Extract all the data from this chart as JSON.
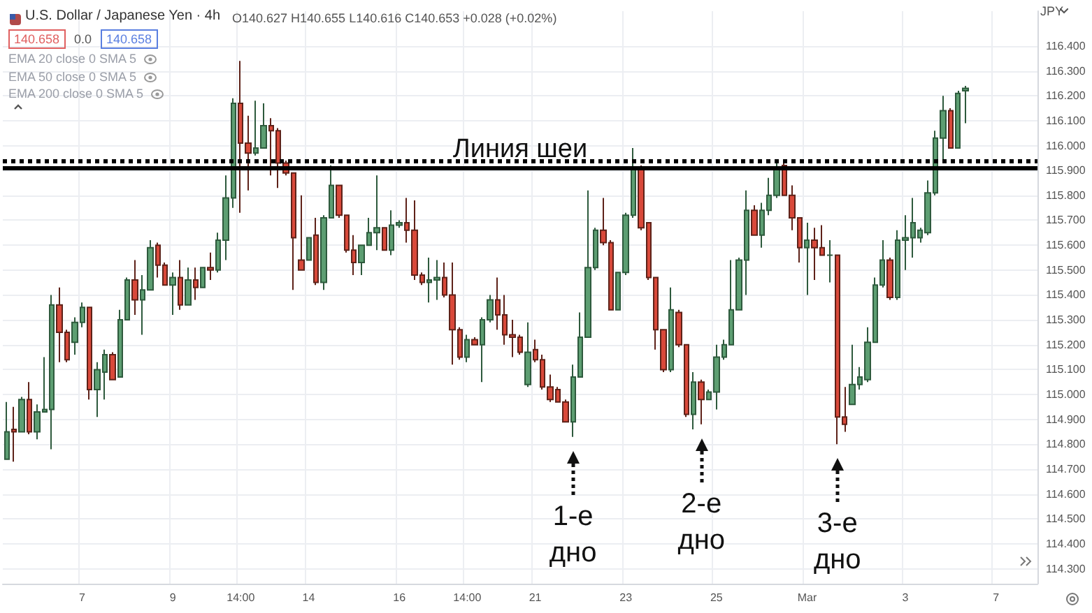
{
  "chart_data": {
    "type": "candlestick",
    "title": "U.S. Dollar / Japanese Yen · 4h",
    "subtitle": "O140.627 H140.655 L140.616 C140.653 +0.028 (+0.02%)",
    "ylabel": "JPY",
    "annotations": [
      "140.658",
      "0.0",
      "140.658",
      "EMA 20 close 0 SMA 5",
      "EMA 50 close 0 SMA 5",
      "EMA 200 close 0 SMA 5",
      {
        "text": "1-е дно",
        "y": 114.83
      },
      {
        "text": "2-е дно",
        "y": 114.88
      },
      {
        "text": "3-е дно",
        "y": 114.8
      }
    ],
    "categories": [
      null,
      null,
      null,
      null,
      null,
      null,
      null,
      null,
      null,
      null,
      "7",
      null,
      null,
      null,
      null,
      null,
      null,
      null,
      null,
      null,
      null,
      null,
      "9",
      null,
      null,
      null,
      null,
      null,
      null,
      null,
      null,
      "14:00",
      null,
      null,
      null,
      null,
      null,
      null,
      null,
      null,
      "14",
      null,
      null,
      null,
      null,
      null,
      null,
      null,
      null,
      null,
      null,
      null,
      "16",
      null,
      null,
      null,
      null,
      null,
      null,
      null,
      null,
      "14:00",
      null,
      null,
      null,
      null,
      null,
      null,
      null,
      null,
      "21",
      null,
      null,
      null,
      null,
      null,
      null,
      null,
      null,
      null,
      null,
      null,
      "23",
      null,
      null,
      null,
      null,
      null,
      null,
      null,
      null,
      null,
      null,
      null,
      "25",
      null,
      null,
      null,
      null,
      null,
      null,
      null,
      null,
      null,
      null,
      null,
      "Mar",
      null,
      null,
      null,
      null,
      null,
      null,
      null,
      null,
      null,
      null,
      null,
      null,
      "3",
      null,
      null,
      null,
      null,
      null,
      null,
      null,
      null,
      null,
      null,
      null,
      "7",
      null,
      null,
      null,
      null,
      null
    ],
    "ohlc": [
      [
        114.74,
        114.97,
        114.74,
        114.85
      ],
      [
        114.86,
        114.95,
        114.73,
        114.85
      ],
      [
        114.85,
        114.99,
        114.85,
        114.98
      ],
      [
        114.98,
        115.05,
        114.84,
        114.85
      ],
      [
        114.85,
        114.96,
        114.82,
        114.93
      ],
      [
        114.93,
        115.15,
        114.93,
        114.94
      ],
      [
        114.94,
        115.4,
        114.78,
        115.36
      ],
      [
        115.36,
        115.43,
        115.13,
        115.25
      ],
      [
        115.25,
        115.26,
        115.13,
        115.14
      ],
      [
        115.21,
        115.31,
        115.16,
        115.29
      ],
      [
        115.29,
        115.37,
        115.27,
        115.35
      ],
      [
        115.35,
        115.35,
        114.98,
        115.02
      ],
      [
        115.02,
        115.13,
        114.91,
        115.1
      ],
      [
        115.09,
        115.18,
        114.98,
        115.16
      ],
      [
        115.16,
        115.17,
        115.06,
        115.06
      ],
      [
        115.07,
        115.34,
        115.07,
        115.3
      ],
      [
        115.3,
        115.47,
        115.3,
        115.46
      ],
      [
        115.46,
        115.54,
        115.32,
        115.38
      ],
      [
        115.38,
        115.48,
        115.24,
        115.42
      ],
      [
        115.42,
        115.62,
        115.42,
        115.59
      ],
      [
        115.6,
        115.61,
        115.47,
        115.52
      ],
      [
        115.52,
        115.53,
        115.44,
        115.44
      ],
      [
        115.44,
        115.49,
        115.32,
        115.47
      ],
      [
        115.47,
        115.54,
        115.34,
        115.36
      ],
      [
        115.36,
        115.51,
        115.36,
        115.46
      ],
      [
        115.46,
        115.51,
        115.38,
        115.43
      ],
      [
        115.43,
        115.51,
        115.43,
        115.51
      ],
      [
        115.51,
        115.57,
        115.46,
        115.5
      ],
      [
        115.5,
        115.65,
        115.49,
        115.62
      ],
      [
        115.62,
        115.88,
        115.54,
        115.79
      ],
      [
        115.79,
        116.19,
        115.75,
        116.17
      ],
      [
        116.17,
        116.34,
        115.73,
        116.01
      ],
      [
        116.01,
        116.12,
        115.82,
        115.97
      ],
      [
        115.97,
        116.18,
        115.96,
        115.99
      ],
      [
        115.99,
        116.17,
        115.99,
        116.08
      ],
      [
        116.08,
        116.11,
        115.88,
        116.06
      ],
      [
        116.06,
        116.07,
        115.83,
        115.93
      ],
      [
        115.93,
        115.94,
        115.88,
        115.89
      ],
      [
        115.89,
        115.89,
        115.42,
        115.63
      ],
      [
        115.54,
        115.8,
        115.5,
        115.5
      ],
      [
        115.54,
        115.63,
        115.54,
        115.63
      ],
      [
        115.64,
        115.71,
        115.44,
        115.45
      ],
      [
        115.45,
        115.72,
        115.42,
        115.71
      ],
      [
        115.71,
        115.92,
        115.71,
        115.84
      ],
      [
        115.84,
        115.84,
        115.71,
        115.72
      ],
      [
        115.72,
        115.72,
        115.57,
        115.58
      ],
      [
        115.58,
        115.64,
        115.48,
        115.53
      ],
      [
        115.53,
        115.6,
        115.48,
        115.6
      ],
      [
        115.6,
        115.71,
        115.6,
        115.65
      ],
      [
        115.65,
        115.88,
        115.58,
        115.67
      ],
      [
        115.67,
        115.67,
        115.58,
        115.58
      ],
      [
        115.58,
        115.74,
        115.56,
        115.68
      ],
      [
        115.68,
        115.7,
        115.67,
        115.69
      ],
      [
        115.69,
        115.79,
        115.61,
        115.66
      ],
      [
        115.66,
        115.78,
        115.46,
        115.48
      ],
      [
        115.48,
        115.49,
        115.44,
        115.45
      ],
      [
        115.45,
        115.55,
        115.37,
        115.46
      ],
      [
        115.46,
        115.54,
        115.38,
        115.47
      ],
      [
        115.47,
        115.53,
        115.39,
        115.4
      ],
      [
        115.4,
        115.53,
        115.12,
        115.26
      ],
      [
        115.26,
        115.27,
        115.14,
        115.15
      ],
      [
        115.15,
        115.24,
        115.13,
        115.22
      ],
      [
        115.22,
        115.23,
        115.2,
        115.2
      ],
      [
        115.2,
        115.31,
        115.05,
        115.3
      ],
      [
        115.3,
        115.4,
        115.29,
        115.38
      ],
      [
        115.38,
        115.47,
        115.26,
        115.32
      ],
      [
        115.32,
        115.4,
        115.2,
        115.24
      ],
      [
        115.24,
        115.3,
        115.15,
        115.23
      ],
      [
        115.23,
        115.24,
        115.16,
        115.17
      ],
      [
        115.04,
        115.29,
        115.03,
        115.17
      ],
      [
        115.18,
        115.22,
        115.13,
        115.14
      ],
      [
        115.14,
        115.16,
        115.02,
        115.03
      ],
      [
        115.03,
        115.08,
        114.97,
        114.98
      ],
      [
        115.02,
        115.03,
        114.97,
        114.97
      ],
      [
        114.97,
        114.98,
        114.89,
        114.89
      ],
      [
        114.89,
        115.12,
        114.83,
        115.07
      ],
      [
        115.07,
        115.33,
        115.07,
        115.23
      ],
      [
        115.23,
        115.82,
        115.23,
        115.51
      ],
      [
        115.51,
        115.67,
        115.5,
        115.66
      ],
      [
        115.66,
        115.79,
        115.6,
        115.61
      ],
      [
        115.61,
        115.62,
        115.34,
        115.34
      ],
      [
        115.34,
        115.49,
        115.34,
        115.49
      ],
      [
        115.49,
        115.73,
        115.48,
        115.72
      ],
      [
        115.72,
        115.99,
        115.71,
        115.91
      ],
      [
        115.91,
        115.92,
        115.66,
        115.67
      ],
      [
        115.69,
        115.69,
        115.46,
        115.47
      ],
      [
        115.47,
        115.47,
        115.18,
        115.26
      ],
      [
        115.26,
        115.26,
        115.09,
        115.1
      ],
      [
        115.1,
        115.43,
        115.09,
        115.34
      ],
      [
        115.33,
        115.34,
        115.19,
        115.2
      ],
      [
        115.2,
        115.2,
        114.91,
        114.92
      ],
      [
        114.92,
        115.09,
        114.86,
        115.05
      ],
      [
        115.05,
        115.06,
        114.88,
        114.98
      ],
      [
        114.98,
        115.02,
        114.98,
        115.01
      ],
      [
        115.01,
        115.2,
        114.94,
        115.15
      ],
      [
        115.15,
        115.22,
        115.14,
        115.2
      ],
      [
        115.2,
        115.54,
        115.2,
        115.34
      ],
      [
        115.34,
        115.55,
        115.34,
        115.54
      ],
      [
        115.54,
        115.82,
        115.4,
        115.74
      ],
      [
        115.74,
        115.76,
        115.64,
        115.64
      ],
      [
        115.64,
        115.77,
        115.59,
        115.74
      ],
      [
        115.74,
        115.87,
        115.72,
        115.8
      ],
      [
        115.8,
        115.94,
        115.79,
        115.91
      ],
      [
        115.92,
        115.93,
        115.8,
        115.8
      ],
      [
        115.8,
        115.84,
        115.66,
        115.71
      ],
      [
        115.71,
        115.71,
        115.53,
        115.59
      ],
      [
        115.59,
        115.69,
        115.4,
        115.62
      ],
      [
        115.62,
        115.67,
        115.46,
        115.59
      ],
      [
        115.59,
        115.68,
        115.56,
        115.56
      ],
      [
        115.56,
        115.62,
        115.45,
        115.56
      ],
      [
        115.56,
        115.56,
        114.8,
        114.91
      ],
      [
        114.91,
        115.03,
        114.85,
        114.88
      ],
      [
        114.96,
        115.2,
        114.96,
        115.04
      ],
      [
        115.04,
        115.11,
        115.02,
        115.07
      ],
      [
        115.06,
        115.27,
        115.05,
        115.21
      ],
      [
        115.21,
        115.47,
        115.21,
        115.44
      ],
      [
        115.44,
        115.62,
        115.43,
        115.54
      ],
      [
        115.54,
        115.55,
        115.38,
        115.39
      ],
      [
        115.39,
        115.66,
        115.38,
        115.62
      ],
      [
        115.62,
        115.72,
        115.5,
        115.63
      ],
      [
        115.63,
        115.79,
        115.55,
        115.69
      ],
      [
        115.63,
        115.67,
        115.61,
        115.66
      ],
      [
        115.65,
        115.86,
        115.64,
        115.81
      ],
      [
        115.81,
        116.06,
        115.8,
        116.03
      ],
      [
        116.03,
        116.2,
        115.94,
        116.14
      ],
      [
        116.14,
        116.15,
        115.99,
        115.99
      ],
      [
        115.99,
        116.22,
        115.99,
        116.21
      ],
      [
        116.22,
        116.24,
        116.09,
        116.23
      ],
      null,
      null,
      null,
      null,
      null,
      null,
      null,
      null,
      null
    ],
    "ylim": [
      114.24,
      116.54
    ],
    "yticks": [
      {
        "value": 114.3,
        "label": "114.300"
      },
      {
        "value": 114.4,
        "label": "114.400"
      },
      {
        "value": 114.5,
        "label": "114.500"
      },
      {
        "value": 114.6,
        "label": "114.600"
      },
      {
        "value": 114.7,
        "label": "114.700"
      },
      {
        "value": 114.8,
        "label": "114.800"
      },
      {
        "value": 114.9,
        "label": "114.900"
      },
      {
        "value": 115.0,
        "label": "115.000"
      },
      {
        "value": 115.1,
        "label": "115.100"
      },
      {
        "value": 115.2,
        "label": "115.200"
      },
      {
        "value": 115.3,
        "label": "115.300"
      },
      {
        "value": 115.4,
        "label": "115.400"
      },
      {
        "value": 115.5,
        "label": "115.500"
      },
      {
        "value": 115.6,
        "label": "115.600"
      },
      {
        "value": 115.7,
        "label": "115.700"
      },
      {
        "value": 115.8,
        "label": "115.800"
      },
      {
        "value": 115.9,
        "label": "115.900"
      },
      {
        "value": 116.0,
        "label": "116.000"
      },
      {
        "value": 116.1,
        "label": "116.100"
      },
      {
        "value": 116.2,
        "label": "116.200"
      },
      {
        "value": 116.3,
        "label": "116.300"
      },
      {
        "value": 116.4,
        "label": "116.400"
      }
    ],
    "ref_lines": [
      {
        "axis": "y",
        "value": 115.945,
        "line_style": "dotted",
        "color": "#000000"
      },
      {
        "axis": "y",
        "value": 115.91,
        "label": "Линия шеи",
        "line_style": "solid",
        "color": "#000000"
      }
    ],
    "grid": true
  }
}
